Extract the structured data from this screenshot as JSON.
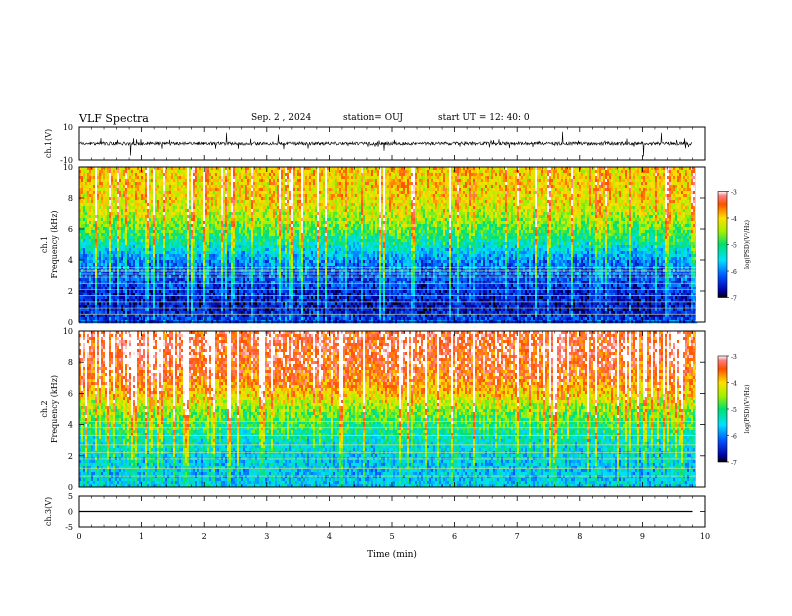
{
  "header": {
    "title": "VLF Spectra",
    "date": "Sep. 2 , 2024",
    "station": "station= OUJ",
    "start": "start UT = 12: 40: 0"
  },
  "colors": {
    "ch1_trace": "#000000",
    "ch3_trace": "#000000",
    "spectrogram_low": "#0000a0",
    "spectrogram_high": "#ff2a00"
  },
  "chart_data": [
    {
      "type": "line",
      "panel": "ch1-waveform",
      "ylabel": "ch.1(V)",
      "ylim": [
        -10,
        10
      ],
      "yticks": [
        "10",
        "-10"
      ],
      "x": [
        0,
        1,
        2,
        3,
        4,
        5,
        6,
        7,
        8,
        9,
        9.8
      ],
      "y": [
        0,
        0,
        0,
        0,
        0,
        0,
        0,
        0,
        0,
        0,
        0
      ],
      "baseline": 0,
      "noise_amplitude": 2
    },
    {
      "type": "heatmap",
      "panel": "ch1-spectrogram",
      "ylabel": "ch.1",
      "ylabel2": "Frequency (kHz)",
      "ylim": [
        0,
        10
      ],
      "yticks": [
        "0",
        "2",
        "4",
        "6",
        "8",
        "10"
      ],
      "xlim": [
        0,
        9.85
      ],
      "colorbar": {
        "label": "log(PSD)(V²/Hz)",
        "range": [
          -7,
          -3
        ],
        "ticks": [
          "-3",
          "-4",
          "-5",
          "-6",
          "-7"
        ]
      },
      "frequency_profile_kHz": [
        0,
        1,
        2,
        3,
        4,
        5,
        6,
        7,
        8,
        9,
        10
      ],
      "log_psd_profile": [
        -6.2,
        -6.6,
        -6.5,
        -6.2,
        -6.0,
        -5.4,
        -4.8,
        -4.4,
        -4.1,
        -4.0,
        -4.0
      ],
      "line_frequencies_kHz": [
        0.5,
        0.9,
        1.3,
        1.7,
        2.1,
        2.5,
        2.9,
        3.1,
        3.3,
        3.5
      ]
    },
    {
      "type": "heatmap",
      "panel": "ch2-spectrogram",
      "ylabel": "ch.2",
      "ylabel2": "Frequency (kHz)",
      "ylim": [
        0,
        10
      ],
      "yticks": [
        "0",
        "2",
        "4",
        "6",
        "8",
        "10"
      ],
      "xlim": [
        0,
        9.85
      ],
      "colorbar": {
        "label": "log(PSD)(V²/Hz)",
        "range": [
          -7,
          -3
        ],
        "ticks": [
          "-3",
          "-4",
          "-5",
          "-6",
          "-7"
        ]
      },
      "frequency_profile_kHz": [
        0,
        1,
        2,
        3,
        4,
        5,
        6,
        7,
        8,
        9,
        10
      ],
      "log_psd_profile": [
        -5.6,
        -5.7,
        -5.6,
        -5.4,
        -5.0,
        -4.6,
        -4.0,
        -3.6,
        -3.4,
        -3.3,
        -3.3
      ],
      "line_frequencies_kHz": [
        0.7,
        1.2,
        1.8,
        2.2,
        2.7,
        3.3,
        3.8,
        4.2
      ]
    },
    {
      "type": "line",
      "panel": "ch3-waveform",
      "ylabel": "ch.3(V)",
      "ylim": [
        -5,
        5
      ],
      "yticks": [
        "5",
        "0",
        "-5"
      ],
      "x": [
        0,
        9.8
      ],
      "y": [
        0,
        0
      ],
      "xlabel": "Time (min)",
      "xlim": [
        0,
        10
      ],
      "xticks": [
        "0",
        "1",
        "2",
        "3",
        "4",
        "5",
        "6",
        "7",
        "8",
        "9",
        "10"
      ]
    }
  ]
}
